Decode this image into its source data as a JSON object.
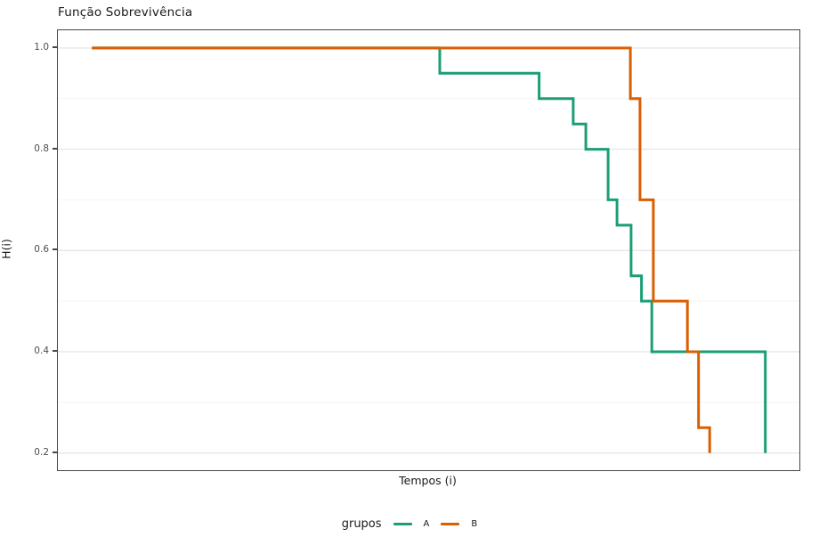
{
  "title": "Função Sobrevivência",
  "axes": {
    "x_label": "Tempos (i)",
    "y_label": "H(i)"
  },
  "legend": {
    "title": "grupos",
    "items": [
      {
        "label": "A",
        "color": "#1b9e77"
      },
      {
        "label": "B",
        "color": "#d95f02"
      }
    ]
  },
  "colors": {
    "series_a": "#1b9e77",
    "series_b": "#d95f02",
    "grid_major": "#e7e7e7",
    "grid_minor": "#f4f4f4",
    "panel_border": "#474747",
    "tick_text": "#4d4d4d",
    "text": "#1a1a1a",
    "background": "#ffffff"
  },
  "chart_data": {
    "type": "line",
    "subtype": "step_survival_curve",
    "title": "Função Sobrevivência",
    "xlabel": "Tempos (i)",
    "ylabel": "H(i)",
    "legend_title": "grupos",
    "legend_position": "bottom",
    "grid": "horizontal major + minor, no vertical gridlines",
    "y_ticks": [
      1.0,
      0.8,
      0.6,
      0.4,
      0.2
    ],
    "y_minor_ticks": [
      0.9,
      0.7,
      0.5,
      0.3
    ],
    "ylim": [
      0.166,
      1.035
    ],
    "x_ticks": [],
    "x_note": "x axis shows no tick labels; x values below are fractions of panel width (0-1)",
    "line_width": 3,
    "series": [
      {
        "name": "A",
        "color": "#1b9e77",
        "start": {
          "x": 0.046,
          "y": 1.0
        },
        "events": [
          [
            0.515,
            0.95
          ],
          [
            0.649,
            0.9
          ],
          [
            0.695,
            0.85
          ],
          [
            0.712,
            0.8
          ],
          [
            0.742,
            0.7
          ],
          [
            0.754,
            0.65
          ],
          [
            0.773,
            0.55
          ],
          [
            0.787,
            0.5
          ],
          [
            0.801,
            0.4
          ],
          [
            0.954,
            0.2
          ]
        ]
      },
      {
        "name": "B",
        "color": "#d95f02",
        "start": {
          "x": 0.046,
          "y": 1.0
        },
        "events": [
          [
            0.772,
            0.9
          ],
          [
            0.785,
            0.7
          ],
          [
            0.803,
            0.5
          ],
          [
            0.849,
            0.4
          ],
          [
            0.864,
            0.25
          ],
          [
            0.879,
            0.2
          ]
        ]
      }
    ]
  }
}
